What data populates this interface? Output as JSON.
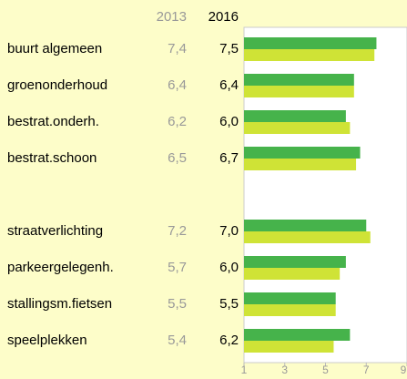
{
  "chart_data": {
    "type": "bar",
    "orientation": "horizontal",
    "categories": [
      "buurt algemeen",
      "groenonderhoud",
      "bestrat.onderh.",
      "bestrat.schoon",
      null,
      "straatverlichting",
      "parkeergelegenh.",
      "stallingsm.fietsen",
      "speelplekken"
    ],
    "series": [
      {
        "name": "2013",
        "color": "#cfe336",
        "values": [
          7.4,
          6.4,
          6.2,
          6.5,
          null,
          7.2,
          5.7,
          5.5,
          5.4
        ],
        "value_labels": [
          "7,4",
          "6,4",
          "6,2",
          "6,5",
          null,
          "7,2",
          "5,7",
          "5,5",
          "5,4"
        ]
      },
      {
        "name": "2016",
        "color": "#46b34b",
        "values": [
          7.5,
          6.4,
          6.0,
          6.7,
          null,
          7.0,
          6.0,
          5.5,
          6.2
        ],
        "value_labels": [
          "7,5",
          "6,4",
          "6,0",
          "6,7",
          null,
          "7,0",
          "6,0",
          "5,5",
          "6,2"
        ]
      }
    ],
    "xlim": [
      1,
      9
    ],
    "xticks": [
      1,
      3,
      5,
      7,
      9
    ],
    "grid": false
  }
}
